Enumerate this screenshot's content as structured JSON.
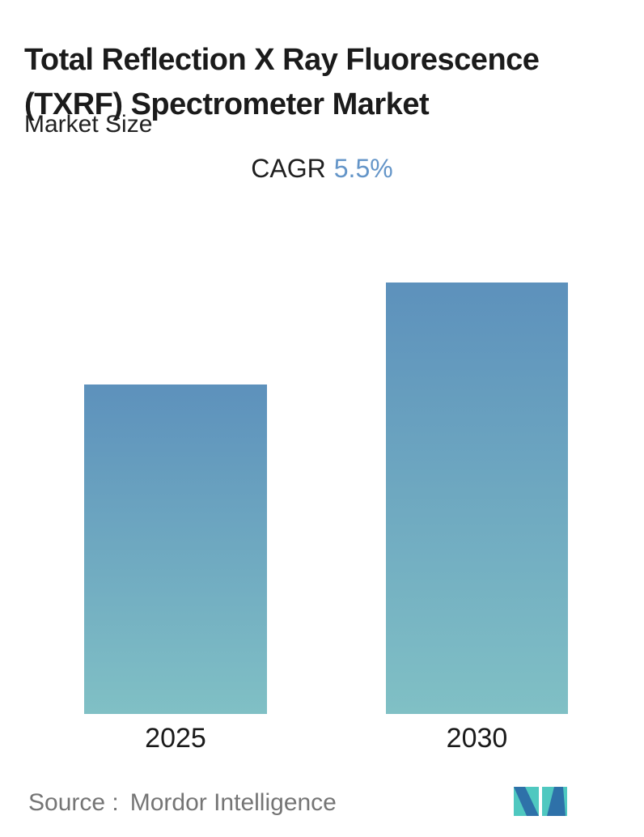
{
  "header": {
    "title_lines": [
      "Total Reflection X Ray Fluorescence",
      "(TXRF) Spectrometer Market"
    ],
    "title_full": "Total Reflection X Ray Fluorescence (TXRF) Spectrometer Market",
    "subtitle": "Market Size",
    "cagr_label": "CAGR",
    "cagr_value": "5.5%"
  },
  "chart_data": {
    "type": "bar",
    "categories": [
      "2025",
      "2030"
    ],
    "values": [
      1.0,
      1.31
    ],
    "title": "Total Reflection X Ray Fluorescence (TXRF) Spectrometer Market",
    "subtitle": "Market Size",
    "annotation": "CAGR 5.5%",
    "xlabel": "",
    "ylabel": "",
    "value_axis": "hidden",
    "grid": "off",
    "legend": "none",
    "bar_gradient_top": "#5d91bc",
    "bar_gradient_bottom": "#80c0c5"
  },
  "footer": {
    "source_label": "Source :",
    "source_name": "Mordor Intelligence"
  },
  "colors": {
    "title_text": "#1b1b1b",
    "cagr_value_text": "#6495c8",
    "source_text": "#757575",
    "logo_teal": "#4fc8c0",
    "logo_blue": "#2e71a9",
    "background": "#ffffff"
  }
}
